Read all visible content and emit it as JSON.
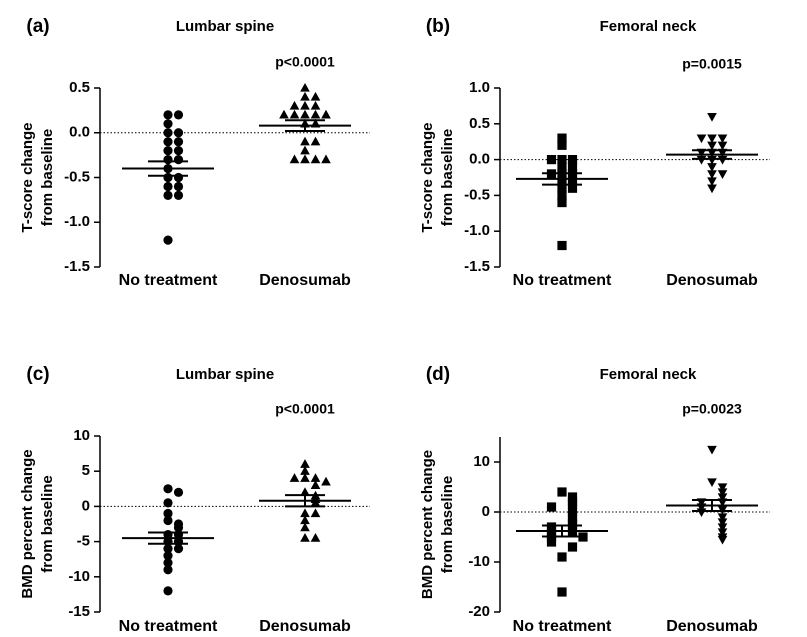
{
  "chart_data": [
    {
      "type": "strip",
      "panel": "(a)",
      "title": "Lumbar spine",
      "annotation": "p<0.0001",
      "ylabel": [
        "T-score change",
        "from baseline"
      ],
      "categories": [
        "No treatment",
        "Denosumab"
      ],
      "ylim": [
        -1.5,
        0.5
      ],
      "yticks": [
        0.5,
        {
          "value": 0,
          "label": "0.0"
        },
        -0.5,
        {
          "value": -1,
          "label": "-1.0"
        },
        -1.5
      ],
      "series": [
        {
          "marker": "circle",
          "color": "#000000",
          "values": [
            0.2,
            0.2,
            0.1,
            0.0,
            0.0,
            -0.1,
            -0.1,
            -0.2,
            -0.2,
            -0.3,
            -0.3,
            -0.4,
            -0.5,
            -0.5,
            -0.6,
            -0.6,
            -0.7,
            -0.7,
            -1.2
          ],
          "mean": -0.4,
          "sem": 0.08
        },
        {
          "marker": "triangle",
          "color": "#000000",
          "values": [
            0.5,
            0.4,
            0.4,
            0.3,
            0.3,
            0.3,
            0.2,
            0.2,
            0.2,
            0.2,
            0.2,
            0.1,
            0.1,
            -0.1,
            -0.1,
            -0.2,
            -0.3,
            -0.3,
            -0.3,
            -0.3
          ],
          "mean": 0.08,
          "sem": 0.06
        }
      ]
    },
    {
      "type": "strip",
      "panel": "(b)",
      "title": "Femoral neck",
      "annotation": "p=0.0015",
      "ylabel": [
        "T-score change",
        "from baseline"
      ],
      "categories": [
        "No treatment",
        "Denosumab"
      ],
      "ylim": [
        -1.5,
        1.0
      ],
      "yticks": [
        {
          "value": 1,
          "label": "1.0"
        },
        0.5,
        {
          "value": 0,
          "label": "0.0"
        },
        -0.5,
        {
          "value": -1,
          "label": "-1.0"
        },
        -1.5
      ],
      "series": [
        {
          "marker": "square",
          "color": "#000000",
          "values": [
            0.3,
            0.2,
            0.0,
            0.0,
            0.0,
            -0.1,
            -0.1,
            -0.2,
            -0.2,
            -0.2,
            -0.3,
            -0.3,
            -0.4,
            -0.4,
            -0.5,
            -0.6,
            -1.2
          ],
          "mean": -0.27,
          "sem": 0.08
        },
        {
          "marker": "triangle-down",
          "color": "#000000",
          "values": [
            0.6,
            0.3,
            0.3,
            0.3,
            0.2,
            0.2,
            0.1,
            0.1,
            0.1,
            0.0,
            0.0,
            0.0,
            -0.1,
            -0.2,
            -0.2,
            -0.3,
            -0.4
          ],
          "mean": 0.07,
          "sem": 0.06
        }
      ]
    },
    {
      "type": "strip",
      "panel": "(c)",
      "title": "Lumbar spine",
      "annotation": "p<0.0001",
      "ylabel": [
        "BMD percent change",
        "from baseline"
      ],
      "categories": [
        "No treatment",
        "Denosumab"
      ],
      "ylim": [
        -15,
        10
      ],
      "yticks": [
        10,
        5,
        0,
        -5,
        -10,
        -15
      ],
      "series": [
        {
          "marker": "circle",
          "color": "#000000",
          "values": [
            2.5,
            2,
            0.5,
            -1,
            -2,
            -2.5,
            -3,
            -4,
            -4,
            -5,
            -5,
            -6,
            -6,
            -7,
            -8,
            -9,
            -12
          ],
          "mean": -4.5,
          "sem": 0.8
        },
        {
          "marker": "triangle",
          "color": "#000000",
          "values": [
            6,
            5,
            4,
            4,
            4,
            3.5,
            3,
            2,
            1.5,
            1,
            0.5,
            -1,
            -1,
            -2,
            -3,
            -4.5,
            -4.5
          ],
          "mean": 0.8,
          "sem": 0.8
        }
      ]
    },
    {
      "type": "strip",
      "panel": "(d)",
      "title": "Femoral neck",
      "annotation": "p=0.0023",
      "ylabel": [
        "BMD percent change",
        "from baseline"
      ],
      "categories": [
        "No treatment",
        "Denosumab"
      ],
      "ylim": [
        -20,
        15
      ],
      "yticks": [
        10,
        0,
        -10,
        -20
      ],
      "series": [
        {
          "marker": "square",
          "color": "#000000",
          "values": [
            4,
            3,
            2,
            1.5,
            1,
            0,
            -1,
            -2,
            -2.5,
            -3,
            -4,
            -4,
            -5,
            -5,
            -6,
            -7,
            -9,
            -16
          ],
          "mean": -3.8,
          "sem": 1.1
        },
        {
          "marker": "triangle-down",
          "color": "#000000",
          "values": [
            12.5,
            6,
            5,
            4,
            3,
            2,
            2,
            1,
            0.5,
            0,
            -1,
            -2,
            -3,
            -4,
            -5,
            -5.5
          ],
          "mean": 1.3,
          "sem": 1.1
        }
      ]
    }
  ]
}
